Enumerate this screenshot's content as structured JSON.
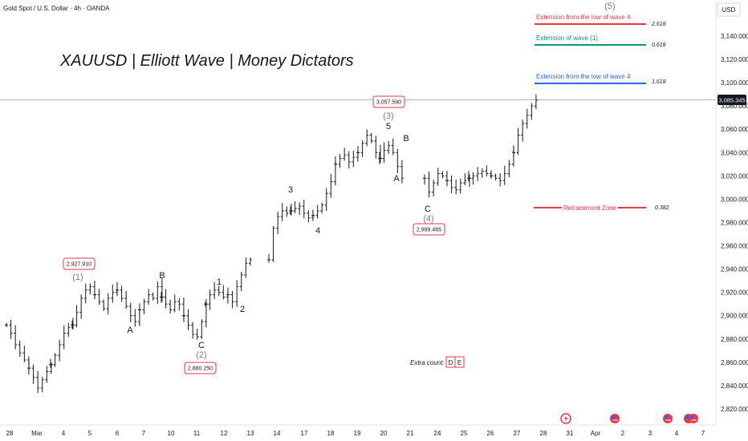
{
  "header": {
    "symbol": "Gold Spot / U.S. Dollar · 4h · OANDA",
    "currency": "USD"
  },
  "title": "XAUUSD | Elliott Wave | Money Dictators",
  "axis": {
    "price_ticks": [
      "3,140.000",
      "3,120.000",
      "3,100.000",
      "3,080.000",
      "3,060.000",
      "3,040.000",
      "3,020.000",
      "3,000.000",
      "2,980.000",
      "2,960.000",
      "2,940.000",
      "2,920.000",
      "2,900.000",
      "2,880.000",
      "2,860.000",
      "2,840.000",
      "2,820.000"
    ],
    "date_ticks": [
      "28",
      "Mar",
      "4",
      "5",
      "6",
      "7",
      "10",
      "11",
      "12",
      "13",
      "14",
      "17",
      "18",
      "19",
      "20",
      "21",
      "24",
      "25",
      "26",
      "27",
      "28",
      "31",
      "Apr",
      "2",
      "3",
      "4",
      "7"
    ],
    "current_price": "3,085.345"
  },
  "levels": [
    {
      "label": "Extension from the low of wave 4",
      "ratio": "2.618",
      "color": "#f23645",
      "price": 3155
    },
    {
      "label": "Extension of wave (1)",
      "ratio": "0.618",
      "color": "#089981",
      "price": 3134
    },
    {
      "label": "Extension from the low of wave 4",
      "ratio": "1.618",
      "color": "#2962ff",
      "price": 3098
    },
    {
      "label": "Retracement Zone",
      "ratio": "0.382",
      "color": "#f23645",
      "price": 2993
    }
  ],
  "waves": {
    "w1": "(1)",
    "w2": "(2)",
    "w3": "(3)",
    "w4": "(4)",
    "w5": "(5)",
    "a1": "A",
    "b1": "B",
    "c1": "C",
    "s1": "1",
    "s2": "2",
    "s3": "3",
    "s4": "4",
    "s5": "5",
    "a2": "A",
    "b2": "B",
    "c2": "C"
  },
  "price_boxes": {
    "b1": "2,927.910",
    "b2": "2,880.250",
    "b3": "3,057.590",
    "b4": "2,999.465"
  },
  "extra_count": {
    "label": "Extra count:",
    "d": "D",
    "e": "E"
  },
  "chart_data": {
    "type": "ohlc",
    "timeframe": "4h",
    "ylim": [
      2815,
      3160
    ],
    "sessions": [
      {
        "date": "2025-02-27",
        "points": [
          2892,
          2885,
          2875,
          2868,
          2862,
          2855
        ]
      },
      {
        "date": "2025-02-28",
        "points": [
          2855,
          2847,
          2838,
          2845,
          2852,
          2858
        ]
      },
      {
        "date": "2025-03-03",
        "points": [
          2858,
          2866,
          2875,
          2885,
          2890,
          2892
        ]
      },
      {
        "date": "2025-03-04",
        "points": [
          2892,
          2903,
          2915,
          2922,
          2925,
          2918
        ]
      },
      {
        "date": "2025-03-05",
        "points": [
          2918,
          2912,
          2906,
          2915,
          2920,
          2922
        ]
      },
      {
        "date": "2025-03-06",
        "points": [
          2922,
          2915,
          2908,
          2900,
          2895,
          2905
        ]
      },
      {
        "date": "2025-03-07",
        "points": [
          2905,
          2912,
          2918,
          2915,
          2925,
          2916
        ]
      },
      {
        "date": "2025-03-10",
        "points": [
          2916,
          2910,
          2905,
          2912,
          2910,
          2900
        ]
      },
      {
        "date": "2025-03-11",
        "points": [
          2900,
          2892,
          2884,
          2882,
          2895,
          2910
        ]
      },
      {
        "date": "2025-03-12",
        "points": [
          2910,
          2918,
          2922,
          2920,
          2916,
          2918
        ]
      },
      {
        "date": "2025-03-13",
        "points": [
          2918,
          2912,
          2925,
          2935,
          2945,
          2948
        ]
      },
      {
        "date": "2025-03-14",
        "points": [
          2948,
          2975,
          2985,
          2990,
          2988,
          2990
        ]
      },
      {
        "date": "2025-03-17",
        "points": [
          2990,
          2992,
          2994,
          2988,
          2984,
          2986
        ]
      },
      {
        "date": "2025-03-18",
        "points": [
          2986,
          2990,
          2995,
          3005,
          3015,
          3030
        ]
      },
      {
        "date": "2025-03-19",
        "points": [
          3030,
          3035,
          3038,
          3032,
          3036,
          3040
        ]
      },
      {
        "date": "2025-03-20",
        "points": [
          3040,
          3048,
          3055,
          3050,
          3040,
          3035
        ]
      },
      {
        "date": "2025-03-21",
        "points": [
          3035,
          3042,
          3046,
          3040,
          3028,
          3018
        ]
      },
      {
        "date": "2025-03-24",
        "points": [
          3018,
          3006,
          3014,
          3022,
          3020,
          3016
        ]
      },
      {
        "date": "2025-03-25",
        "points": [
          3016,
          3010,
          3008,
          3014,
          3016,
          3018
        ]
      },
      {
        "date": "2025-03-26",
        "points": [
          3018,
          3020,
          3022,
          3024,
          3022,
          3020
        ]
      },
      {
        "date": "2025-03-27",
        "points": [
          3020,
          3018,
          3016,
          3022,
          3030,
          3040
        ]
      },
      {
        "date": "2025-03-28",
        "points": [
          3040,
          3055,
          3065,
          3072,
          3080,
          3085
        ]
      }
    ]
  }
}
